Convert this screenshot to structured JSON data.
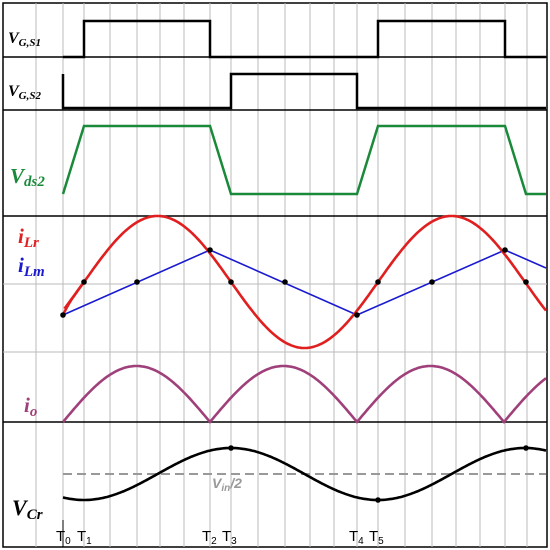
{
  "labels": {
    "vgs1_main": "V",
    "vgs1_sub": "G,S1",
    "vgs2_main": "V",
    "vgs2_sub": "G,S2",
    "vds2_main": "V",
    "vds2_sub": "ds2",
    "ilr_main": "i",
    "ilr_sub": "Lr",
    "ilm_main": "i",
    "ilm_sub": "Lm",
    "io_main": "i",
    "io_sub": "o",
    "vcr_main": "V",
    "vcr_sub": "Cr",
    "vin_main": "V",
    "vin_sub": "in",
    "vin_suffix": "/2"
  },
  "time_ticks": [
    {
      "main": "T",
      "sub": "0"
    },
    {
      "main": "T",
      "sub": "1"
    },
    {
      "main": "T",
      "sub": "2"
    },
    {
      "main": "T",
      "sub": "3"
    },
    {
      "main": "T",
      "sub": "4"
    },
    {
      "main": "T",
      "sub": "5"
    }
  ],
  "colors": {
    "vgs": "#000000",
    "vds2": "#1a8a3a",
    "ilr": "#e02020",
    "ilm": "#1a1ad0",
    "io": "#a0407a",
    "vcr": "#000000",
    "vin_ref": "#999999",
    "grid": "#bbbbbb",
    "frame": "#000000"
  }
}
